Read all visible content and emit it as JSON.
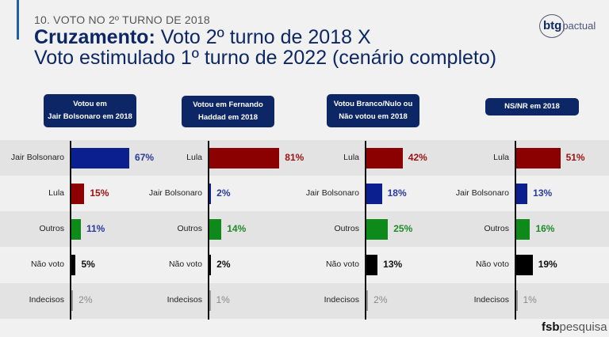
{
  "header": {
    "section": "10. VOTO NO 2º TURNO DE 2018",
    "title_bold": "Cruzamento:",
    "title_line1": " Voto 2º turno de 2018 X",
    "title_line2": "Voto estimulado 1º turno de 2022 (cenário completo)"
  },
  "logos": {
    "btg": "btg",
    "pactual": "pactual",
    "fsb_bold": "fsb",
    "fsb_rest": "pesquisa"
  },
  "colors": {
    "Jair Bolsonaro": "#0b1f8e",
    "Lula": "#8b0000",
    "Outros": "#0d8a1a",
    "Não voto": "#000000",
    "Indecisos": "#999999",
    "header_bg": "#0d2766"
  },
  "label_colors": {
    "Jair Bolsonaro": "#2a3a9a",
    "Lula": "#9b1111",
    "Outros": "#1f8a28",
    "Não voto": "#111111",
    "Indecisos": "#8a8a8a"
  },
  "chart_data": [
    {
      "type": "bar",
      "orientation": "horizontal",
      "title": "Votou em Jair Bolsonaro em 2018",
      "title_lines": [
        "Votou em",
        "Jair Bolsonaro em 2018"
      ],
      "categories": [
        "Jair Bolsonaro",
        "Lula",
        "Outros",
        "Não voto",
        "Indecisos"
      ],
      "values": [
        67,
        15,
        11,
        5,
        2
      ],
      "labels": [
        "67%",
        "15%",
        "11%",
        "5%",
        "2%"
      ],
      "label_color_override": {
        "Outros": "#2a3a9a"
      },
      "unit": "%"
    },
    {
      "type": "bar",
      "orientation": "horizontal",
      "title": "Votou em Fernando Haddad em 2018",
      "title_lines": [
        "Votou em Fernando",
        "Haddad em 2018"
      ],
      "categories": [
        "Lula",
        "Jair Bolsonaro",
        "Outros",
        "Não voto",
        "Indecisos"
      ],
      "values": [
        81,
        2,
        14,
        2,
        1
      ],
      "labels": [
        "81%",
        "2%",
        "14%",
        "2%",
        "1%"
      ],
      "unit": "%"
    },
    {
      "type": "bar",
      "orientation": "horizontal",
      "title": "Votou Branco/Nulo ou Não votou em 2018",
      "title_lines": [
        "Votou Branco/Nulo ou",
        "Não votou em 2018"
      ],
      "categories": [
        "Lula",
        "Jair Bolsonaro",
        "Outros",
        "Não voto",
        "Indecisos"
      ],
      "values": [
        42,
        18,
        25,
        13,
        2
      ],
      "labels": [
        "42%",
        "18%",
        "25%",
        "13%",
        "2%"
      ],
      "unit": "%"
    },
    {
      "type": "bar",
      "orientation": "horizontal",
      "title": "NS/NR em 2018",
      "title_lines": [
        "NS/NR em 2018"
      ],
      "categories": [
        "Lula",
        "Jair Bolsonaro",
        "Outros",
        "Não voto",
        "Indecisos"
      ],
      "values": [
        51,
        13,
        16,
        19,
        1
      ],
      "labels": [
        "51%",
        "13%",
        "16%",
        "19%",
        "1%"
      ],
      "unit": "%"
    }
  ]
}
